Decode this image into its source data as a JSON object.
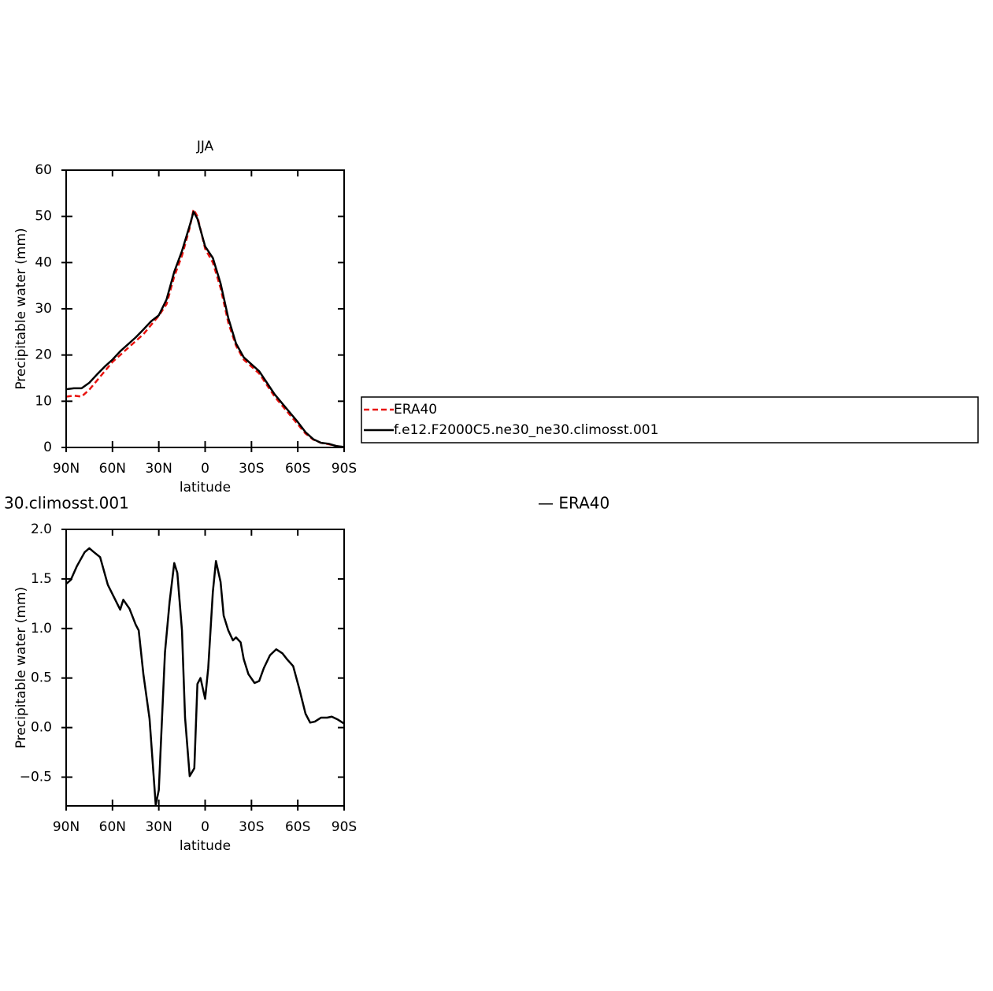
{
  "chart_data": [
    {
      "type": "line",
      "title": "JJA",
      "xlabel": "latitude",
      "ylabel": "Precipitable water (mm)",
      "x": [
        90,
        85,
        80,
        75,
        70,
        65,
        60,
        55,
        50,
        45,
        40,
        35,
        30,
        25,
        20,
        15,
        10,
        7.5,
        5,
        0,
        -5,
        -10,
        -15,
        -20,
        -25,
        -30,
        -35,
        -40,
        -45,
        -50,
        -55,
        -60,
        -65,
        -70,
        -75,
        -80,
        -85,
        -90
      ],
      "series": [
        {
          "name": "ERA40",
          "color": "#e8130f",
          "dash": true,
          "values": [
            11,
            11.2,
            11,
            12.5,
            14.5,
            16.5,
            18.5,
            20,
            21.5,
            23,
            24.5,
            26.5,
            28.5,
            31,
            37,
            41.5,
            47.5,
            51.5,
            50,
            43,
            40,
            34.5,
            27,
            22,
            19,
            17.5,
            16,
            13.5,
            11,
            9,
            7,
            5,
            3,
            1.7,
            1,
            0.7,
            0.3,
            0
          ]
        },
        {
          "name": "f.e12.F2000C5.ne30_ne30.climosst.001",
          "color": "#000000",
          "dash": false,
          "values": [
            12.6,
            12.8,
            12.8,
            14,
            15.8,
            17.5,
            19,
            20.8,
            22.3,
            23.8,
            25.5,
            27.3,
            28.6,
            32,
            38,
            42.5,
            48,
            51,
            49.5,
            43.5,
            41,
            35.5,
            28,
            22.5,
            19.5,
            18,
            16.5,
            14,
            11.5,
            9.5,
            7.5,
            5.5,
            3.3,
            1.8,
            1,
            0.8,
            0.3,
            0.1
          ]
        }
      ],
      "xlim": [
        90,
        -90
      ],
      "xticks": [
        {
          "value": 90,
          "label": "90N"
        },
        {
          "value": 60,
          "label": "60N"
        },
        {
          "value": 30,
          "label": "30N"
        },
        0,
        {
          "value": -30,
          "label": "30S"
        },
        {
          "value": -60,
          "label": "60S"
        },
        {
          "value": -90,
          "label": "90S"
        }
      ],
      "ylim": [
        0,
        60
      ],
      "yticks": [
        0,
        10,
        20,
        30,
        40,
        50,
        60
      ],
      "grid": false,
      "legend": "right"
    },
    {
      "type": "line",
      "title_left": "30.climosst.001",
      "title_right": "— ERA40",
      "xlabel": "latitude",
      "ylabel": "Precipitable water (mm)",
      "x": [
        90,
        87,
        83,
        78,
        75,
        72,
        68,
        63,
        55,
        53,
        49,
        45,
        43,
        40,
        36,
        32,
        30,
        26,
        23,
        20,
        18,
        15,
        13,
        10,
        7,
        5,
        3,
        0,
        -2,
        -5,
        -7,
        -10,
        -12,
        -15,
        -18,
        -20,
        -23,
        -25,
        -28,
        -32,
        -35,
        -38,
        -42,
        -46,
        -50,
        -53,
        -57,
        -61,
        -65,
        -68,
        -71,
        -75,
        -79,
        -82,
        -86,
        -90
      ],
      "series": [
        {
          "color": "#000000",
          "dash": false,
          "values": [
            1.45,
            1.49,
            1.63,
            1.77,
            1.81,
            1.77,
            1.72,
            1.44,
            1.19,
            1.29,
            1.2,
            1.04,
            0.98,
            0.54,
            0.09,
            -0.78,
            -0.63,
            0.76,
            1.27,
            1.66,
            1.56,
            0.98,
            0.1,
            -0.49,
            -0.41,
            0.44,
            0.5,
            0.29,
            0.6,
            1.37,
            1.68,
            1.47,
            1.13,
            0.98,
            0.88,
            0.91,
            0.86,
            0.69,
            0.54,
            0.45,
            0.47,
            0.6,
            0.73,
            0.79,
            0.75,
            0.69,
            0.62,
            0.39,
            0.14,
            0.05,
            0.06,
            0.1,
            0.1,
            0.11,
            0.08,
            0.04
          ]
        }
      ],
      "xlim": [
        90,
        -90
      ],
      "xticks": [
        {
          "value": 90,
          "label": "90N"
        },
        {
          "value": 60,
          "label": "60N"
        },
        {
          "value": 30,
          "label": "30N"
        },
        0,
        {
          "value": -30,
          "label": "30S"
        },
        {
          "value": -60,
          "label": "60S"
        },
        {
          "value": -90,
          "label": "90S"
        }
      ],
      "ylim": [
        -0.79,
        2.0
      ],
      "yticks": [
        {
          "value": -0.5,
          "label": "−0.5"
        },
        {
          "value": 0,
          "label": "0.0"
        },
        {
          "value": 0.5,
          "label": "0.5"
        },
        {
          "value": 1,
          "label": "1.0"
        },
        {
          "value": 1.5,
          "label": "1.5"
        },
        {
          "value": 2,
          "label": "2.0"
        }
      ],
      "grid": false
    }
  ]
}
